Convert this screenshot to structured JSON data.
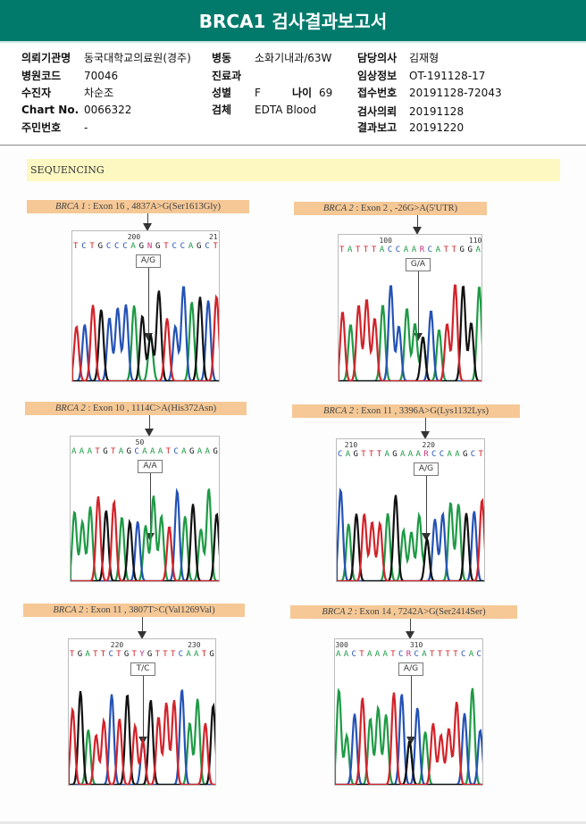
{
  "title": "BRCA1 검사결과보고서",
  "info": {
    "institution": {
      "label": "의뢰기관명",
      "value": "동국대학교의료원(경주)"
    },
    "hospital_code": {
      "label": "병원코드",
      "value": "70046"
    },
    "patient": {
      "label": "수진자",
      "value": "차순조"
    },
    "chart_no": {
      "label": "Chart No.",
      "value": "0066322"
    },
    "resident_no": {
      "label": "주민번호",
      "value": "-"
    },
    "ward": {
      "label": "병동",
      "value": "소화기내과/63W"
    },
    "department": {
      "label": "진료과",
      "value": ""
    },
    "sex": {
      "label": "성별",
      "value": "F"
    },
    "age": {
      "label": "나이",
      "value": "69"
    },
    "specimen": {
      "label": "검체",
      "value": "EDTA Blood"
    },
    "doctor": {
      "label": "담당의사",
      "value": "김재형"
    },
    "clinical_info": {
      "label": "임상정보",
      "value": "OT-191128-17"
    },
    "receipt_no": {
      "label": "접수번호",
      "value": "20191128-72043"
    },
    "request_date": {
      "label": "검사의뢰",
      "value": "20191128"
    },
    "report_date": {
      "label": "결과보고",
      "value": "20191220"
    }
  },
  "section": "SEQUENCING",
  "colors": {
    "A": "#1e9a45",
    "C": "#2452b5",
    "G": "#111111",
    "T": "#d2232a",
    "R": "#c0307a",
    "Y": "#c0307a",
    "N": "#c0307a"
  },
  "panels": [
    {
      "gene": "BRCA 1",
      "detail": ": Exon 16 , 4837A>G(Ser1613Gly)",
      "seq": "TCTGCCCAGNGTCCAGCT",
      "pos1": "200",
      "pos2": "21",
      "call": "A/G"
    },
    {
      "gene": "BRCA 2",
      "detail": ": Exon 2 , -26G>A(5'UTR)",
      "seq": "TATTTACCAARCATTGGA",
      "pos1": "100",
      "pos2": "110",
      "call": "G/A"
    },
    {
      "gene": "BRCA 2",
      "detail": ": Exon 10 , 1114C>A(His372Asn)",
      "seq": "AAATGTAGCAAATCAGAAG",
      "pos1": "50",
      "pos2": "",
      "call": "A/A"
    },
    {
      "gene": "BRCA 2",
      "detail": ": Exon 11 , 3396A>G(Lys1132Lys)",
      "seq": "CAGTTTAGAAARCCAAGCT",
      "pos1": "210",
      "pos2": "220",
      "call": "A/G"
    },
    {
      "gene": "BRCA 2",
      "detail": ": Exon 11 , 3807T>C(Val1269Val)",
      "seq": "TGATTCTGTYGTTTCAATG",
      "pos1": "220",
      "pos2": "230",
      "call": "T/C"
    },
    {
      "gene": "BRCA 2",
      "detail": ": Exon 14 , 7242A>G(Ser2414Ser)",
      "seq": "AACTAAATCRCATTTTCAC",
      "pos1": "300",
      "pos2": "310",
      "call": "A/G"
    }
  ]
}
